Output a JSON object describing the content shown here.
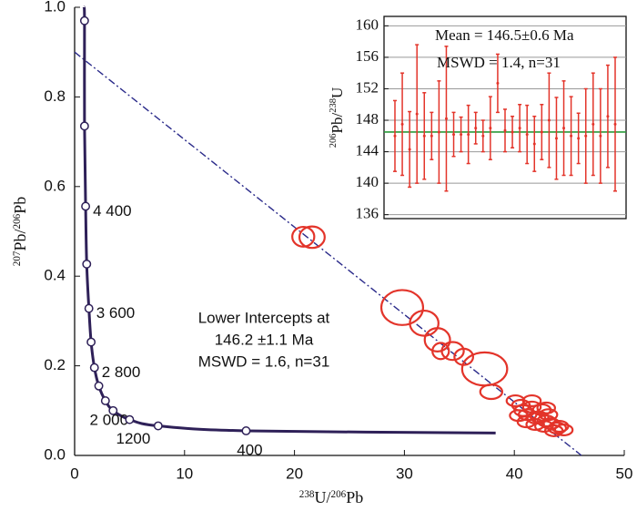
{
  "chart_data": [
    {
      "type": "concordia",
      "x_label": [
        "238",
        "U/",
        "206",
        "Pb"
      ],
      "y_label": [
        "207",
        "Pb/",
        "206",
        "Pb"
      ],
      "xlim": [
        0,
        50
      ],
      "xticks": [
        0,
        10,
        20,
        30,
        40,
        50
      ],
      "ylim": [
        0,
        1
      ],
      "yticks": [
        {
          "value": 0,
          "label": "0.0"
        },
        0.2,
        0.4,
        0.6,
        0.8,
        {
          "value": 1,
          "label": "1.0"
        }
      ],
      "curve": {
        "color": "#2e2058",
        "x": [
          0.85,
          0.9,
          0.9,
          1.0,
          1.1,
          1.3,
          1.5,
          1.8,
          2.2,
          2.8,
          3.5,
          5.0,
          7.6,
          15.6,
          38.3
        ],
        "y": [
          1.0,
          0.97,
          0.735,
          0.556,
          0.427,
          0.328,
          0.253,
          0.196,
          0.155,
          0.122,
          0.1,
          0.08,
          0.066,
          0.055,
          0.05
        ]
      },
      "markers": {
        "x": [
          0.9,
          0.9,
          1.0,
          1.1,
          1.3,
          1.5,
          1.8,
          2.2,
          2.8,
          3.5,
          5.0,
          7.6,
          15.6
        ],
        "y": [
          0.97,
          0.735,
          0.556,
          0.427,
          0.328,
          0.253,
          0.196,
          0.155,
          0.122,
          0.1,
          0.08,
          0.066,
          0.055
        ],
        "labels": [
          null,
          null,
          "4 400",
          null,
          "3 600",
          null,
          "2 800",
          null,
          "2 000",
          null,
          "1200",
          null,
          "400"
        ]
      },
      "discordia": {
        "color": "#2a2a8a",
        "x": [
          0,
          46.1
        ],
        "y": [
          0.9,
          0
        ]
      },
      "ellipses": {
        "color": "#e3342a",
        "x": [
          20.8,
          21.6,
          29.8,
          31.8,
          33.0,
          33.3,
          34.4,
          35.4,
          37.3,
          37.9,
          40.1,
          40.6,
          41.6,
          42.5,
          42.9,
          40.4,
          41.2,
          42.0,
          42.9,
          41.1,
          41.9,
          42.7,
          43.3,
          43.9,
          44.5,
          43.6,
          42.3,
          41.6,
          40.8,
          43.1,
          44.1
        ],
        "y": [
          0.488,
          0.487,
          0.33,
          0.295,
          0.258,
          0.233,
          0.233,
          0.22,
          0.193,
          0.142,
          0.122,
          0.112,
          0.108,
          0.102,
          0.106,
          0.089,
          0.091,
          0.083,
          0.077,
          0.075,
          0.069,
          0.065,
          0.071,
          0.061,
          0.057,
          0.055,
          0.085,
          0.122,
          0.1,
          0.091,
          0.065
        ],
        "sx": [
          1.0,
          1.15,
          1.9,
          1.3,
          1.15,
          0.75,
          1.0,
          0.85,
          2.05,
          1.0,
          0.8,
          0.8,
          0.8,
          0.8,
          0.8,
          0.8,
          0.8,
          0.8,
          0.8,
          0.8,
          0.8,
          0.8,
          0.8,
          0.8,
          0.8,
          0.8,
          0.8,
          0.8,
          0.8,
          0.8,
          0.8
        ],
        "sy": [
          0.022,
          0.024,
          0.039,
          0.028,
          0.026,
          0.018,
          0.02,
          0.018,
          0.037,
          0.016,
          0.012,
          0.012,
          0.012,
          0.012,
          0.012,
          0.012,
          0.012,
          0.012,
          0.012,
          0.012,
          0.012,
          0.012,
          0.012,
          0.012,
          0.012,
          0.012,
          0.012,
          0.012,
          0.012,
          0.012,
          0.012
        ]
      },
      "annotation": [
        "Lower Intercepts at",
        "146.2 ±1.1 Ma",
        "MSWD = 1.6, n=31"
      ]
    },
    {
      "type": "errorbar",
      "y_label": [
        "206",
        "Pb/",
        "238",
        "U"
      ],
      "ylim": [
        135.5,
        161.2
      ],
      "yticks": [
        136,
        140,
        144,
        148,
        152,
        156,
        160
      ],
      "grid": true,
      "color": "#e3342a",
      "values": [
        146,
        147.5,
        144.3,
        148.8,
        146,
        146,
        146.5,
        148.2,
        146.2,
        146.2,
        146.2,
        147,
        146,
        147,
        152.7,
        146.7,
        146.5,
        147,
        146.2,
        145,
        146.5,
        148,
        145.7,
        147,
        146,
        145.7,
        146,
        147.5,
        146,
        148.5,
        147.5
      ],
      "errors": [
        4.5,
        6.5,
        4.8,
        8.8,
        5.5,
        3,
        6.5,
        9.2,
        2.8,
        2.2,
        3.7,
        2,
        2,
        4,
        3.7,
        2.7,
        2,
        3,
        3.7,
        3.5,
        3.5,
        6,
        5.2,
        6,
        5,
        3.2,
        6,
        6.5,
        6,
        6.5,
        8.5
      ],
      "mean": 146.5,
      "mean_color": "#2a9a3a",
      "annotation": [
        "Mean = 146.5±0.6 Ma",
        "MSWD = 1.4, n=31"
      ]
    }
  ]
}
